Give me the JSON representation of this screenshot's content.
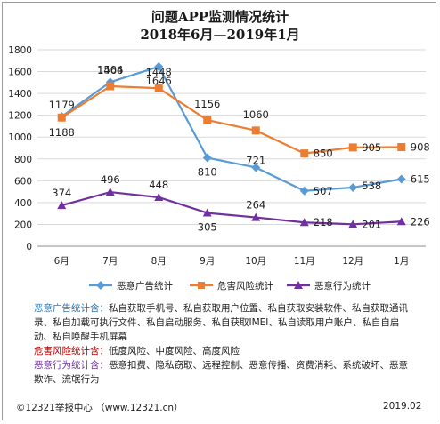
{
  "chart_data": {
    "type": "line",
    "title": "问题APP监测情况统计",
    "subtitle": "2018年6月—2019年1月",
    "categories": [
      "6月",
      "7月",
      "8月",
      "9月",
      "10月",
      "11月",
      "12月",
      "1月"
    ],
    "ylim": [
      0,
      1800
    ],
    "yticks": [
      0,
      200,
      400,
      600,
      800,
      1000,
      1200,
      1400,
      1600,
      1800
    ],
    "grid": true,
    "legend_position": "bottom",
    "series": [
      {
        "name": "恶意广告统计",
        "color": "#5b9bd5",
        "marker": "diamond",
        "values": [
          1188,
          1504,
          1646,
          810,
          721,
          507,
          538,
          615
        ],
        "labels": [
          "1188",
          "1504",
          "1646",
          "810",
          "721",
          "507",
          "538",
          "615"
        ]
      },
      {
        "name": "危害风险统计",
        "color": "#ed7d31",
        "marker": "square",
        "values": [
          1179,
          1466,
          1448,
          1156,
          1060,
          850,
          905,
          908
        ],
        "labels": [
          "1179",
          "1466",
          "1448",
          "1156",
          "1060",
          "850",
          "905",
          "908"
        ]
      },
      {
        "name": "恶意行为统计",
        "color": "#7030a0",
        "marker": "triangle",
        "values": [
          374,
          496,
          448,
          305,
          264,
          218,
          201,
          226
        ],
        "labels": [
          "374",
          "496",
          "448",
          "305",
          "264",
          "218",
          "201",
          "226"
        ]
      }
    ]
  },
  "notes": {
    "ads_label": "恶意广告统计含：",
    "ads_text": "私自获取手机号、私自获取用户位置、私自获取安装软件、私自获取通讯录、私自加载可执行文件、私自启动服务、私自获取IMEI、私自读取用户账户、私自自启动、私自唤醒手机屏幕",
    "risk_label": "危害风险统计含：",
    "risk_text": "低度风险、中度风险、高度风险",
    "behavior_label": "恶意行为统计含：",
    "behavior_text": "恶意扣费、隐私窃取、远程控制、恶意传播、资费消耗、系统破坏、恶意欺诈、流氓行为"
  },
  "footer": {
    "source": "©12321举报中心 （www.12321.cn）",
    "date": "2019.02"
  }
}
